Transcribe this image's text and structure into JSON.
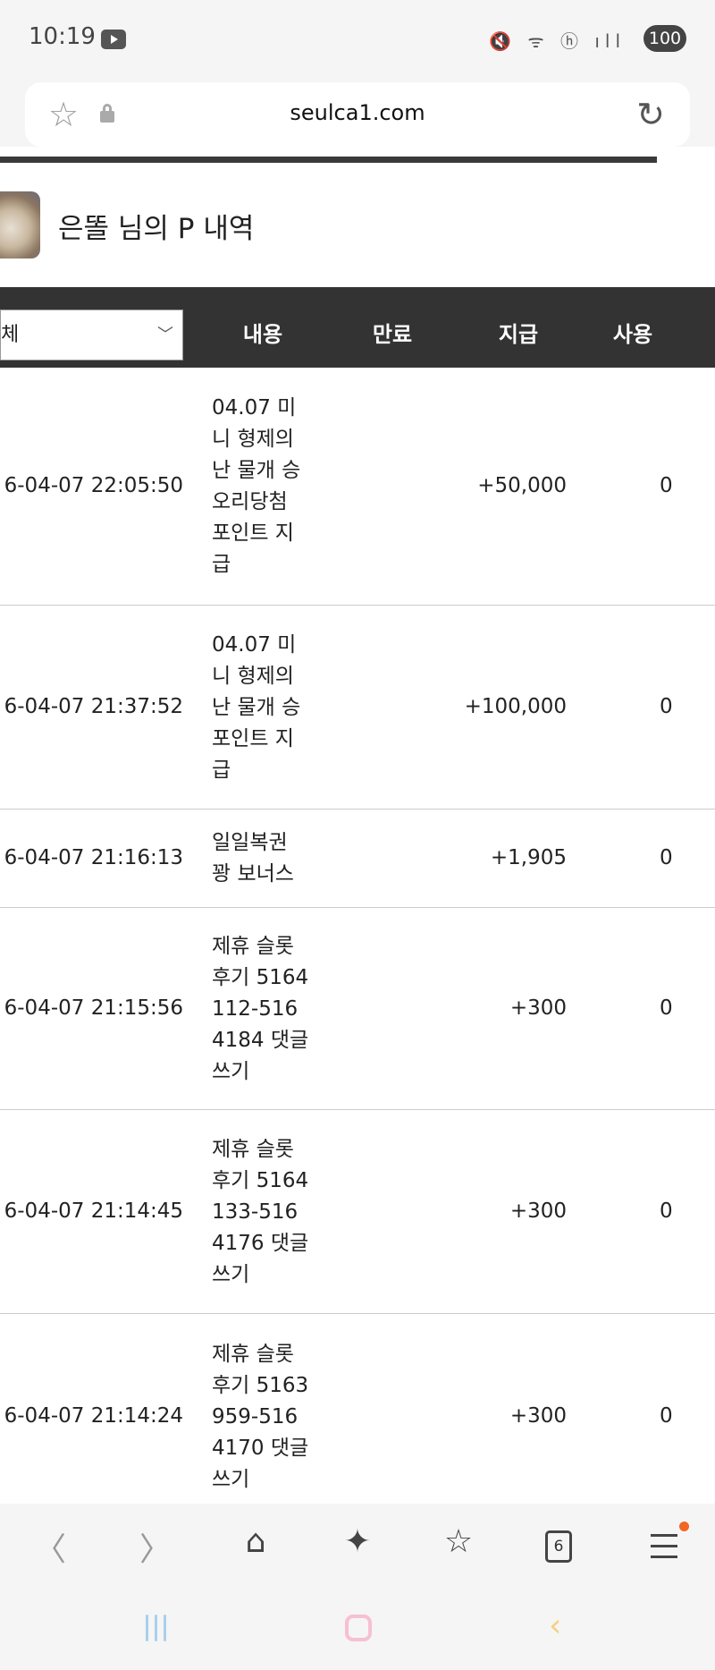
{
  "status_bar": {
    "time": "10:19",
    "icons": [
      "youtube-icon",
      "mute-icon",
      "wifi-icon",
      "hd-icon",
      "signal-icon"
    ],
    "battery": "100"
  },
  "browser": {
    "url": "seulca1.com",
    "tab_count": "6"
  },
  "page": {
    "title": "은똘 님의 P 내역",
    "filter": {
      "selected": "체"
    },
    "columns": [
      "내용",
      "만료",
      "지급",
      "사용"
    ],
    "rows": [
      {
        "date": "6-04-07 22:05:50",
        "content": "04.07 미니 형제의난 물개 승 오리당첨 포인트 지급",
        "expire": "",
        "paid": "+50,000",
        "used": "0"
      },
      {
        "date": "6-04-07 21:37:52",
        "content": "04.07 미니 형제의난 물개 승 포인트 지급",
        "expire": "",
        "paid": "+100,000",
        "used": "0"
      },
      {
        "date": "6-04-07 21:16:13",
        "content": "일일복권 꽝 보너스",
        "expire": "",
        "paid": "+1,905",
        "used": "0"
      },
      {
        "date": "6-04-07 21:15:56",
        "content": "제휴 슬롯 후기 5164112-5164184 댓글쓰기",
        "expire": "",
        "paid": "+300",
        "used": "0"
      },
      {
        "date": "6-04-07 21:14:45",
        "content": "제휴 슬롯 후기 5164133-5164176 댓글쓰기",
        "expire": "",
        "paid": "+300",
        "used": "0"
      },
      {
        "date": "6-04-07 21:14:24",
        "content": "제휴 슬롯 후기 5163959-5164170 댓글쓰기",
        "expire": "",
        "paid": "+300",
        "used": "0"
      }
    ]
  },
  "colors": {
    "header_bg": "#333333",
    "notification_dot": "#f26522"
  }
}
